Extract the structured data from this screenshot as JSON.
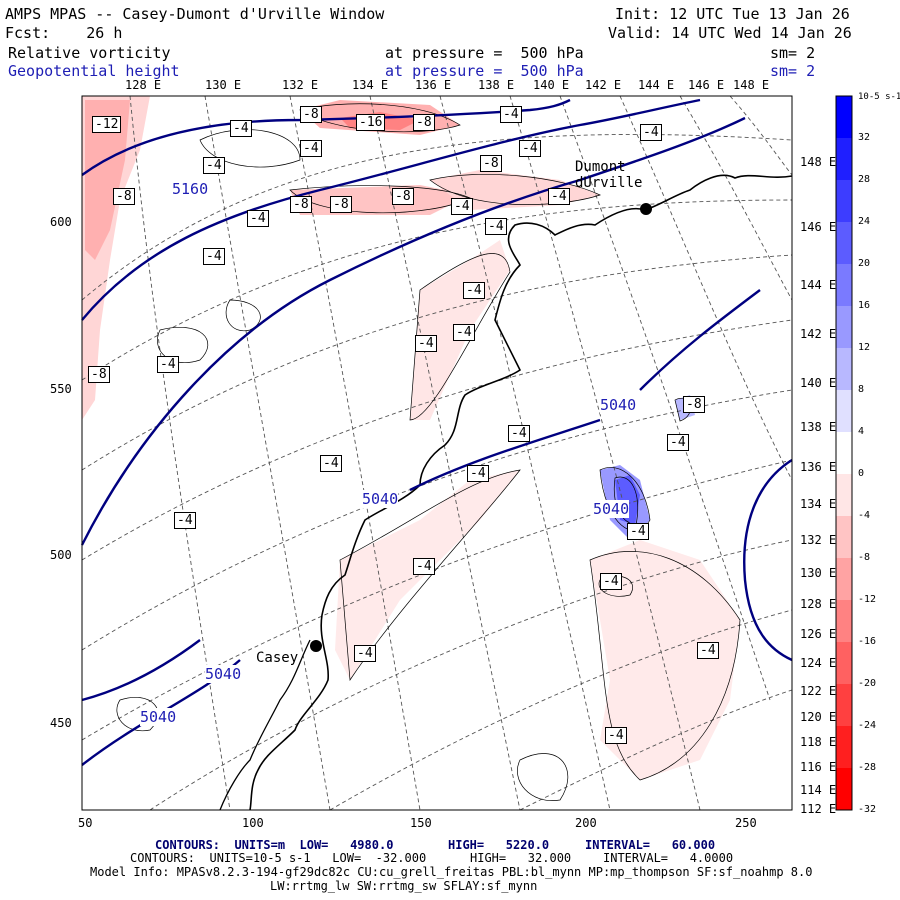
{
  "header": {
    "title": "AMPS MPAS -- Casey-Dumont d'Urville Window",
    "init": "Init: 12 UTC Tue 13 Jan 26",
    "fcst": "Fcst:    26 h",
    "valid": "Valid: 14 UTC Wed 14 Jan 26",
    "field1_name": "Relative vorticity",
    "field1_level": "at pressure =  500 hPa",
    "field1_sm": "sm= 2",
    "field2_name": "Geopotential height",
    "field2_level": "at pressure =  500 hPa",
    "field2_sm": "sm= 2"
  },
  "top_longitudes": [
    "128 E",
    "130 E",
    "132 E",
    "134 E",
    "136 E",
    "138 E",
    "140 E",
    "142 E",
    "144 E",
    "146 E",
    "148 E"
  ],
  "right_longitudes": [
    "148 E",
    "146 E",
    "144 E",
    "142 E",
    "140 E",
    "138 E",
    "136 E",
    "134 E",
    "132 E",
    "130 E",
    "128 E",
    "126 E",
    "124 E",
    "122 E",
    "120 E",
    "118 E",
    "116 E",
    "114 E",
    "112 E"
  ],
  "x_ticks": [
    "50",
    "100",
    "150",
    "200",
    "250"
  ],
  "y_ticks": [
    "600",
    "550",
    "500",
    "450"
  ],
  "colorbar": {
    "unit_label": "10-5 s-1",
    "labels": [
      "32",
      "28",
      "24",
      "20",
      "16",
      "12",
      "8",
      "4",
      "0",
      "-4",
      "-8",
      "-12",
      "-16",
      "-20",
      "-24",
      "-28",
      "-32"
    ],
    "colors": [
      "#0000ff",
      "#1f1fff",
      "#3d3dff",
      "#5c5cff",
      "#7a7aff",
      "#9999ff",
      "#b8b8ff",
      "#e0e0ff",
      "#ffffff",
      "#ffe6e6",
      "#ffc4c4",
      "#ffa3a3",
      "#ff8282",
      "#ff6161",
      "#ff4040",
      "#ff1f1f",
      "#ff0000"
    ]
  },
  "stations": [
    {
      "name": "Dumont\ndUrville"
    },
    {
      "name": "Casey"
    }
  ],
  "height_labels": [
    "5160",
    "5040",
    "5040",
    "5040",
    "5040",
    "5040"
  ],
  "vort_labels": [
    "-12",
    "-8",
    "-16",
    "-8",
    "-4",
    "-4",
    "-4",
    "-8",
    "-8",
    "-8",
    "-8",
    "-4",
    "-4",
    "-8",
    "-4",
    "-4",
    "-4",
    "-4",
    "-8",
    "-4",
    "-8",
    "-4",
    "-4",
    "-4",
    "-4",
    "-4",
    "-4",
    "-4",
    "-4",
    "-4",
    "-4",
    "-4",
    "-4",
    "-4",
    "-4",
    "-4",
    "-4"
  ],
  "footer": {
    "line1_a": "CONTOURS:  UNITS=m  LOW=   4980.0",
    "line1_b": "HIGH=   5220.0",
    "line1_c": "INTERVAL=   60.000",
    "line2_a": "CONTOURS:  UNITS=10-5 s-1   LOW=  -32.000",
    "line2_b": "HIGH=   32.000",
    "line2_c": "INTERVAL=   4.0000",
    "line3": "Model Info: MPASv8.2.3-194-gf29dc82c CU:cu_grell_freitas PBL:bl_mynn MP:mp_thompson SF:sf_noahmp 8.0",
    "line4": "LW:rrtmg_lw SW:rrtmg_sw SFLAY:sf_mynn"
  }
}
